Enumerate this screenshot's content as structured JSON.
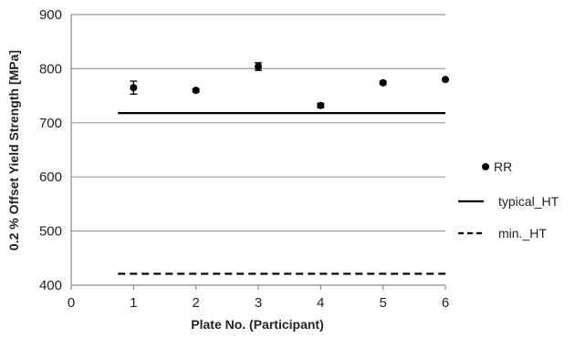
{
  "chart_data": {
    "type": "scatter",
    "title": "",
    "xlabel": "Plate No. (Participant)",
    "ylabel": "0.2 % Offset Yield Strength [MPa]",
    "xlim": [
      0,
      6
    ],
    "ylim": [
      400,
      900
    ],
    "xticks": [
      "0",
      "1",
      "2",
      "3",
      "4",
      "5",
      "6"
    ],
    "yticks": [
      "400",
      "500",
      "600",
      "700",
      "800",
      "900"
    ],
    "grid": "horizontal",
    "legend_position": "right",
    "series": [
      {
        "name": "RR",
        "kind": "points",
        "marker": "filled-circle",
        "x": [
          1,
          2,
          3,
          4,
          5,
          6
        ],
        "y": [
          765,
          760,
          804,
          732,
          774,
          780
        ],
        "error": [
          12,
          3,
          7,
          4,
          3,
          0
        ]
      },
      {
        "name": "typical_HT",
        "kind": "line",
        "style": "solid",
        "x": [
          0.75,
          6
        ],
        "y": [
          718,
          718
        ]
      },
      {
        "name": "min._HT",
        "kind": "line",
        "style": "dashed",
        "x": [
          0.75,
          6
        ],
        "y": [
          421,
          421
        ]
      }
    ]
  }
}
